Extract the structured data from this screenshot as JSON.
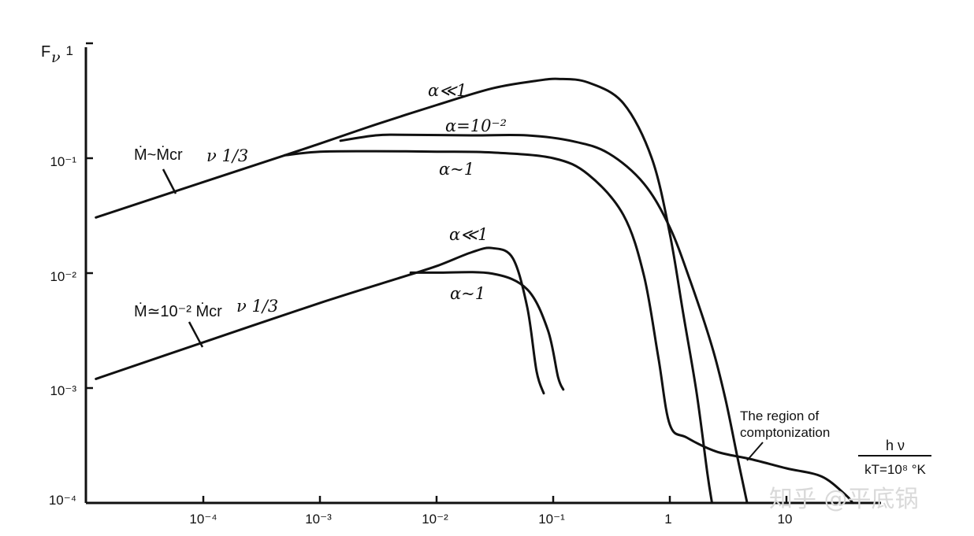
{
  "chart_data": {
    "type": "line",
    "xscale": "log",
    "yscale": "log",
    "xlim": [
      1.2e-05,
      40
    ],
    "ylim": [
      0.0001,
      1
    ],
    "grid": false,
    "ylabel": {
      "main": "F",
      "sub": "ν"
    },
    "xlabel": {
      "numerator": "h ν",
      "denominator": "kT=10⁸ °K"
    },
    "x_ticks": [
      {
        "value": 0.0001,
        "label": "10⁻⁴"
      },
      {
        "value": 0.001,
        "label": "10⁻³"
      },
      {
        "value": 0.01,
        "label": "10⁻²"
      },
      {
        "value": 0.1,
        "label": "10⁻¹"
      },
      {
        "value": 1,
        "label": "1"
      },
      {
        "value": 10,
        "label": "10"
      }
    ],
    "y_ticks": [
      {
        "value": 0.0001,
        "label": "10⁻⁴"
      },
      {
        "value": 0.001,
        "label": "10⁻³"
      },
      {
        "value": 0.01,
        "label": "10⁻²"
      },
      {
        "value": 0.1,
        "label": "10⁻¹"
      },
      {
        "value": 1,
        "label": "1"
      }
    ],
    "series": [
      {
        "name": "α≪1",
        "group": "Ṁ~Ṁcr",
        "points": [
          [
            1.2e-05,
            0.0305
          ],
          [
            0.0001,
            0.062
          ],
          [
            0.0005,
            0.106
          ],
          [
            0.001,
            0.134
          ],
          [
            0.003,
            0.196
          ],
          [
            0.01,
            0.29
          ],
          [
            0.03,
            0.405
          ],
          [
            0.07,
            0.47
          ],
          [
            0.11,
            0.49
          ],
          [
            0.2,
            0.455
          ],
          [
            0.4,
            0.3
          ],
          [
            0.7,
            0.1
          ],
          [
            1.0,
            0.022
          ],
          [
            1.3,
            0.0045
          ],
          [
            1.7,
            0.0009
          ],
          [
            2.1,
            0.00018
          ],
          [
            2.3,
            0.0001
          ]
        ]
      },
      {
        "name": "α=10⁻²",
        "group": "Ṁ~Ṁcr",
        "points": [
          [
            0.0015,
            0.142
          ],
          [
            0.003,
            0.158
          ],
          [
            0.005,
            0.16
          ],
          [
            0.02,
            0.158
          ],
          [
            0.06,
            0.158
          ],
          [
            0.15,
            0.14
          ],
          [
            0.3,
            0.11
          ],
          [
            0.6,
            0.06
          ],
          [
            1.0,
            0.025
          ],
          [
            1.5,
            0.0085
          ],
          [
            2.3,
            0.0023
          ],
          [
            3.0,
            0.0008
          ],
          [
            3.8,
            0.00025
          ],
          [
            4.6,
            0.0001
          ]
        ]
      },
      {
        "name": "α~1",
        "group": "Ṁ~Ṁcr",
        "points": [
          [
            0.0005,
            0.106
          ],
          [
            0.001,
            0.114
          ],
          [
            0.003,
            0.115
          ],
          [
            0.01,
            0.114
          ],
          [
            0.03,
            0.112
          ],
          [
            0.1,
            0.1
          ],
          [
            0.2,
            0.072
          ],
          [
            0.4,
            0.032
          ],
          [
            0.6,
            0.0095
          ],
          [
            0.8,
            0.0018
          ],
          [
            1.0,
            0.00048
          ],
          [
            1.4,
            0.00037
          ],
          [
            2.5,
            0.00028
          ],
          [
            5,
            0.00024
          ],
          [
            10,
            0.0002
          ],
          [
            20,
            0.00017
          ],
          [
            32,
            0.000118
          ],
          [
            37,
            0.0001
          ]
        ]
      },
      {
        "name": "α≪1",
        "group": "Ṁ≃10⁻²Ṁcr",
        "points": [
          [
            1.2e-05,
            0.0012
          ],
          [
            0.0001,
            0.0025
          ],
          [
            0.001,
            0.0055
          ],
          [
            0.005,
            0.0092
          ],
          [
            0.01,
            0.0115
          ],
          [
            0.02,
            0.0152
          ],
          [
            0.03,
            0.0165
          ],
          [
            0.045,
            0.0135
          ],
          [
            0.06,
            0.005
          ],
          [
            0.072,
            0.0014
          ],
          [
            0.083,
            0.0009
          ]
        ]
      },
      {
        "name": "α~1",
        "group": "Ṁ≃10⁻²Ṁcr",
        "points": [
          [
            0.006,
            0.0101
          ],
          [
            0.01,
            0.0101
          ],
          [
            0.03,
            0.0099
          ],
          [
            0.06,
            0.0072
          ],
          [
            0.09,
            0.0032
          ],
          [
            0.11,
            0.00125
          ],
          [
            0.122,
            0.00097
          ]
        ]
      }
    ],
    "annotations": {
      "rate_upper": "Ṁ~Ṁcr",
      "rate_lower": "Ṁ≃10⁻² Ṁcr",
      "slope": "ν 1/3",
      "label_a1": "α≪1",
      "label_a2": "α=10⁻²",
      "label_a3": "α~1",
      "label_b1": "α≪1",
      "label_b2": "α~1",
      "region_line1": "The region of",
      "region_line2": "comptonization"
    }
  },
  "watermark": "知乎 @平底锅"
}
